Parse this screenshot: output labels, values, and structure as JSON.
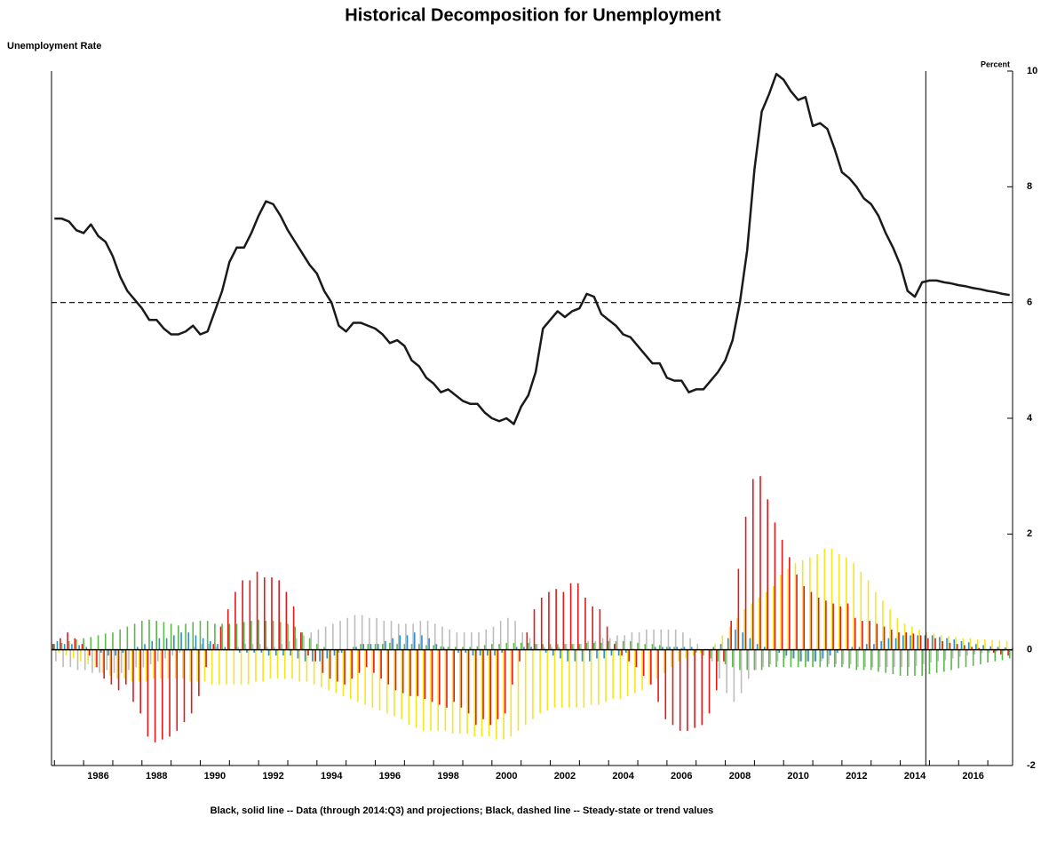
{
  "chart_data": {
    "type": "combo",
    "title": "Historical Decomposition for Unemployment",
    "subtitle": "Unemployment Rate",
    "y_axis_label": "Percent",
    "footnote": "Black, solid line -- Data (through 2014:Q3) and projections; Black, dashed line -- Steady-state or trend values",
    "xlim": [
      1984.9,
      2017.85
    ],
    "xticks": [
      1986,
      1988,
      1990,
      1992,
      1994,
      1996,
      1998,
      2000,
      2002,
      2004,
      2006,
      2008,
      2010,
      2012,
      2014,
      2016
    ],
    "xminorticks": [
      1985,
      1987,
      1989,
      1991,
      1993,
      1995,
      1997,
      1999,
      2001,
      2003,
      2005,
      2007,
      2009,
      2011,
      2013,
      2015,
      2017
    ],
    "ylim": [
      -2,
      10
    ],
    "yticks": [
      -2,
      0,
      2,
      4,
      6,
      8,
      10
    ],
    "trend_value": 6,
    "vline": 2014.875,
    "x": [
      1985,
      1985.25,
      1985.5,
      1985.75,
      1986,
      1986.25,
      1986.5,
      1986.75,
      1987,
      1987.25,
      1987.5,
      1987.75,
      1988,
      1988.25,
      1988.5,
      1988.75,
      1989,
      1989.25,
      1989.5,
      1989.75,
      1990,
      1990.25,
      1990.5,
      1990.75,
      1991,
      1991.25,
      1991.5,
      1991.75,
      1992,
      1992.25,
      1992.5,
      1992.75,
      1993,
      1993.25,
      1993.5,
      1993.75,
      1994,
      1994.25,
      1994.5,
      1994.75,
      1995,
      1995.25,
      1995.5,
      1995.75,
      1996,
      1996.25,
      1996.5,
      1996.75,
      1997,
      1997.25,
      1997.5,
      1997.75,
      1998,
      1998.25,
      1998.5,
      1998.75,
      1999,
      1999.25,
      1999.5,
      1999.75,
      2000,
      2000.25,
      2000.5,
      2000.75,
      2001,
      2001.25,
      2001.5,
      2001.75,
      2002,
      2002.25,
      2002.5,
      2002.75,
      2003,
      2003.25,
      2003.5,
      2003.75,
      2004,
      2004.25,
      2004.5,
      2004.75,
      2005,
      2005.25,
      2005.5,
      2005.75,
      2006,
      2006.25,
      2006.5,
      2006.75,
      2007,
      2007.25,
      2007.5,
      2007.75,
      2008,
      2008.25,
      2008.5,
      2008.75,
      2009,
      2009.25,
      2009.5,
      2009.75,
      2010,
      2010.25,
      2010.5,
      2010.75,
      2011,
      2011.25,
      2011.5,
      2011.75,
      2012,
      2012.25,
      2012.5,
      2012.75,
      2013,
      2013.25,
      2013.5,
      2013.75,
      2014,
      2014.25,
      2014.5,
      2014.75,
      2015,
      2015.25,
      2015.5,
      2015.75,
      2016,
      2016.25,
      2016.5,
      2016.75,
      2017,
      2017.25,
      2017.5,
      2017.75
    ],
    "series": [
      {
        "type": "line",
        "color": "#1a1a1a",
        "values": [
          7.45,
          7.45,
          7.4,
          7.25,
          7.2,
          7.35,
          7.15,
          7.05,
          6.8,
          6.45,
          6.2,
          6.05,
          5.9,
          5.7,
          5.7,
          5.55,
          5.45,
          5.45,
          5.5,
          5.6,
          5.45,
          5.5,
          5.85,
          6.2,
          6.7,
          6.95,
          6.95,
          7.2,
          7.5,
          7.75,
          7.7,
          7.5,
          7.25,
          7.05,
          6.85,
          6.65,
          6.5,
          6.2,
          6.0,
          5.6,
          5.5,
          5.65,
          5.65,
          5.6,
          5.55,
          5.45,
          5.3,
          5.35,
          5.25,
          5.0,
          4.9,
          4.7,
          4.6,
          4.45,
          4.5,
          4.4,
          4.3,
          4.25,
          4.25,
          4.1,
          4.0,
          3.95,
          4.0,
          3.9,
          4.2,
          4.4,
          4.8,
          5.55,
          5.7,
          5.85,
          5.75,
          5.85,
          5.9,
          6.15,
          6.1,
          5.8,
          5.7,
          5.6,
          5.45,
          5.4,
          5.25,
          5.1,
          4.95,
          4.95,
          4.7,
          4.65,
          4.65,
          4.45,
          4.5,
          4.5,
          4.65,
          4.8,
          5.0,
          5.35,
          6.0,
          6.9,
          8.3,
          9.3,
          9.6,
          9.95,
          9.85,
          9.65,
          9.5,
          9.55,
          9.05,
          9.1,
          9.0,
          8.65,
          8.25,
          8.15,
          8.0,
          7.8,
          7.7,
          7.5,
          7.2,
          6.95,
          6.65,
          6.2,
          6.1,
          6.35,
          6.38,
          6.38,
          6.35,
          6.33,
          6.3,
          6.28,
          6.25,
          6.23,
          6.2,
          6.18,
          6.15,
          6.13
        ]
      },
      {
        "type": "bar",
        "color": "#f5e61e",
        "values": [
          0.0,
          -0.05,
          -0.1,
          -0.15,
          -0.2,
          -0.25,
          -0.3,
          -0.4,
          -0.45,
          -0.5,
          -0.5,
          -0.55,
          -0.55,
          -0.55,
          -0.5,
          -0.5,
          -0.5,
          -0.5,
          -0.5,
          -0.55,
          -0.55,
          -0.55,
          -0.6,
          -0.6,
          -0.6,
          -0.6,
          -0.6,
          -0.6,
          -0.55,
          -0.55,
          -0.5,
          -0.5,
          -0.5,
          -0.5,
          -0.55,
          -0.55,
          -0.6,
          -0.65,
          -0.7,
          -0.75,
          -0.8,
          -0.85,
          -0.9,
          -0.95,
          -1.0,
          -1.05,
          -1.1,
          -1.15,
          -1.2,
          -1.3,
          -1.35,
          -1.4,
          -1.4,
          -1.4,
          -1.4,
          -1.45,
          -1.45,
          -1.45,
          -1.5,
          -1.5,
          -1.5,
          -1.55,
          -1.55,
          -1.5,
          -1.4,
          -1.3,
          -1.2,
          -1.1,
          -1.05,
          -1.0,
          -1.0,
          -1.0,
          -1.0,
          -1.0,
          -0.95,
          -0.95,
          -0.9,
          -0.85,
          -0.85,
          -0.8,
          -0.75,
          -0.7,
          -0.6,
          -0.5,
          -0.4,
          -0.3,
          -0.2,
          -0.15,
          -0.1,
          -0.05,
          0.0,
          0.1,
          0.25,
          0.4,
          0.55,
          0.7,
          0.8,
          0.9,
          1.0,
          1.1,
          1.3,
          1.4,
          1.5,
          1.55,
          1.6,
          1.65,
          1.75,
          1.75,
          1.65,
          1.6,
          1.5,
          1.35,
          1.2,
          1.0,
          0.85,
          0.7,
          0.55,
          0.45,
          0.4,
          0.35,
          0.3,
          0.28,
          0.25,
          0.23,
          0.22,
          0.2,
          0.2,
          0.18,
          0.18,
          0.17,
          0.16,
          0.15
        ]
      },
      {
        "type": "bar",
        "color": "#e3191c",
        "values": [
          0.1,
          0.2,
          0.3,
          0.2,
          0.1,
          -0.1,
          -0.3,
          -0.5,
          -0.6,
          -0.7,
          -0.6,
          -0.9,
          -1.1,
          -1.5,
          -1.6,
          -1.55,
          -1.5,
          -1.4,
          -1.25,
          -1.1,
          -0.8,
          -0.3,
          0.1,
          0.4,
          0.7,
          1.0,
          1.2,
          1.2,
          1.35,
          1.25,
          1.25,
          1.2,
          1.0,
          0.75,
          0.3,
          -0.1,
          -0.2,
          -0.4,
          -0.5,
          -0.55,
          -0.6,
          -0.5,
          -0.4,
          -0.3,
          -0.4,
          -0.5,
          -0.6,
          -0.7,
          -0.75,
          -0.8,
          -0.8,
          -0.85,
          -0.9,
          -0.95,
          -1.0,
          -0.9,
          -1.0,
          -1.1,
          -1.3,
          -1.2,
          -1.3,
          -1.2,
          -1.1,
          -0.6,
          -0.2,
          0.3,
          0.7,
          0.9,
          1.0,
          1.05,
          1.0,
          1.15,
          1.15,
          0.9,
          0.75,
          0.7,
          0.4,
          0.1,
          -0.1,
          -0.2,
          -0.3,
          -0.45,
          -0.6,
          -0.9,
          -1.2,
          -1.3,
          -1.4,
          -1.4,
          -1.35,
          -1.3,
          -1.1,
          -0.7,
          -0.2,
          0.5,
          1.4,
          2.3,
          2.95,
          3.0,
          2.6,
          2.2,
          1.9,
          1.6,
          1.3,
          1.1,
          1.0,
          0.9,
          0.85,
          0.8,
          0.75,
          0.8,
          0.55,
          0.5,
          0.5,
          0.45,
          0.4,
          0.35,
          0.3,
          0.3,
          0.28,
          0.25,
          0.2,
          0.2,
          0.15,
          0.12,
          0.1,
          0.08,
          0.05,
          0.03,
          0.0,
          -0.05,
          -0.08,
          -0.1
        ]
      },
      {
        "type": "bar",
        "color": "#5cb848",
        "values": [
          0.1,
          0.12,
          0.15,
          0.18,
          0.2,
          0.22,
          0.25,
          0.28,
          0.3,
          0.35,
          0.4,
          0.45,
          0.5,
          0.52,
          0.5,
          0.48,
          0.45,
          0.42,
          0.45,
          0.48,
          0.5,
          0.5,
          0.45,
          0.45,
          0.45,
          0.45,
          0.48,
          0.5,
          0.52,
          0.5,
          0.5,
          0.48,
          0.45,
          0.4,
          0.3,
          0.2,
          0.1,
          0.05,
          0.0,
          -0.05,
          0.0,
          0.05,
          0.1,
          0.1,
          0.1,
          0.1,
          0.12,
          0.1,
          0.1,
          0.1,
          0.1,
          0.08,
          0.08,
          0.06,
          0.05,
          0.05,
          0.05,
          0.05,
          0.06,
          0.08,
          0.1,
          0.1,
          0.12,
          0.12,
          0.12,
          0.12,
          0.1,
          0.1,
          0.1,
          0.1,
          0.1,
          0.1,
          0.1,
          0.12,
          0.12,
          0.12,
          0.15,
          0.15,
          0.15,
          0.15,
          0.12,
          0.1,
          0.1,
          0.08,
          0.05,
          0.05,
          0.03,
          0.0,
          -0.05,
          -0.1,
          -0.15,
          -0.2,
          -0.25,
          -0.3,
          -0.35,
          -0.35,
          -0.35,
          -0.35,
          -0.3,
          -0.3,
          -0.3,
          -0.3,
          -0.3,
          -0.3,
          -0.3,
          -0.3,
          -0.3,
          -0.3,
          -0.3,
          -0.32,
          -0.35,
          -0.35,
          -0.35,
          -0.38,
          -0.4,
          -0.42,
          -0.45,
          -0.45,
          -0.45,
          -0.45,
          -0.42,
          -0.4,
          -0.38,
          -0.35,
          -0.32,
          -0.3,
          -0.28,
          -0.25,
          -0.22,
          -0.2,
          -0.18,
          -0.15
        ]
      },
      {
        "type": "bar",
        "color": "#bdbdbd",
        "values": [
          -0.2,
          -0.3,
          -0.3,
          -0.35,
          -0.35,
          -0.4,
          -0.4,
          -0.35,
          -0.4,
          -0.4,
          -0.35,
          -0.3,
          -0.3,
          -0.25,
          -0.2,
          -0.15,
          -0.1,
          -0.05,
          0.0,
          0.05,
          0.1,
          0.1,
          0.05,
          0.0,
          0.0,
          0.05,
          0.1,
          0.1,
          0.1,
          0.05,
          0.05,
          0.1,
          0.15,
          0.2,
          0.25,
          0.3,
          0.35,
          0.4,
          0.45,
          0.5,
          0.55,
          0.6,
          0.6,
          0.55,
          0.55,
          0.5,
          0.5,
          0.45,
          0.45,
          0.45,
          0.5,
          0.5,
          0.45,
          0.4,
          0.35,
          0.3,
          0.3,
          0.3,
          0.3,
          0.35,
          0.4,
          0.5,
          0.55,
          0.5,
          0.3,
          0.2,
          0.1,
          0.05,
          0.05,
          0.05,
          0.1,
          0.1,
          0.1,
          0.15,
          0.15,
          0.2,
          0.2,
          0.25,
          0.25,
          0.3,
          0.3,
          0.35,
          0.35,
          0.35,
          0.35,
          0.35,
          0.3,
          0.2,
          0.1,
          0.0,
          -0.2,
          -0.5,
          -0.75,
          -0.9,
          -0.75,
          -0.5,
          -0.35,
          -0.3,
          -0.25,
          -0.2,
          -0.15,
          -0.15,
          -0.2,
          -0.2,
          -0.2,
          -0.2,
          -0.25,
          -0.25,
          -0.25,
          -0.25,
          -0.3,
          -0.3,
          -0.3,
          -0.3,
          -0.3,
          -0.3,
          -0.3,
          -0.3,
          -0.28,
          -0.25,
          -0.22,
          -0.2,
          -0.18,
          -0.15,
          -0.12,
          -0.1,
          -0.08,
          -0.06,
          -0.05,
          -0.04,
          -0.03,
          -0.02
        ]
      },
      {
        "type": "bar",
        "color": "#2c8fd6",
        "values": [
          0.15,
          0.1,
          0.1,
          0.08,
          0.05,
          0.0,
          -0.05,
          -0.1,
          -0.1,
          -0.05,
          0.0,
          0.05,
          0.1,
          0.15,
          0.2,
          0.2,
          0.25,
          0.3,
          0.3,
          0.25,
          0.2,
          0.15,
          0.1,
          0.05,
          0.0,
          -0.05,
          -0.05,
          -0.05,
          -0.05,
          -0.1,
          -0.1,
          -0.1,
          -0.1,
          -0.15,
          -0.2,
          -0.2,
          -0.2,
          -0.15,
          -0.1,
          -0.05,
          0.0,
          0.05,
          0.1,
          0.1,
          0.1,
          0.15,
          0.2,
          0.25,
          0.25,
          0.3,
          0.25,
          0.2,
          0.1,
          0.05,
          0.0,
          -0.05,
          -0.05,
          -0.1,
          -0.1,
          -0.1,
          -0.1,
          -0.05,
          0.0,
          0.05,
          0.05,
          0.05,
          0.0,
          -0.05,
          -0.1,
          -0.15,
          -0.2,
          -0.2,
          -0.2,
          -0.2,
          -0.15,
          -0.15,
          -0.1,
          -0.1,
          -0.05,
          0.0,
          0.0,
          0.0,
          0.05,
          0.05,
          0.05,
          0.05,
          0.05,
          0.05,
          0.0,
          0.0,
          0.05,
          0.1,
          0.2,
          0.35,
          0.3,
          0.2,
          0.1,
          0.05,
          0.0,
          -0.05,
          -0.1,
          -0.15,
          -0.2,
          -0.2,
          -0.2,
          -0.15,
          -0.1,
          -0.05,
          0.0,
          0.05,
          0.05,
          0.1,
          0.1,
          0.15,
          0.2,
          0.2,
          0.25,
          0.25,
          0.25,
          0.25,
          0.25,
          0.22,
          0.2,
          0.18,
          0.15,
          0.13,
          0.1,
          0.08,
          0.06,
          0.05,
          0.04,
          0.03
        ]
      }
    ]
  }
}
